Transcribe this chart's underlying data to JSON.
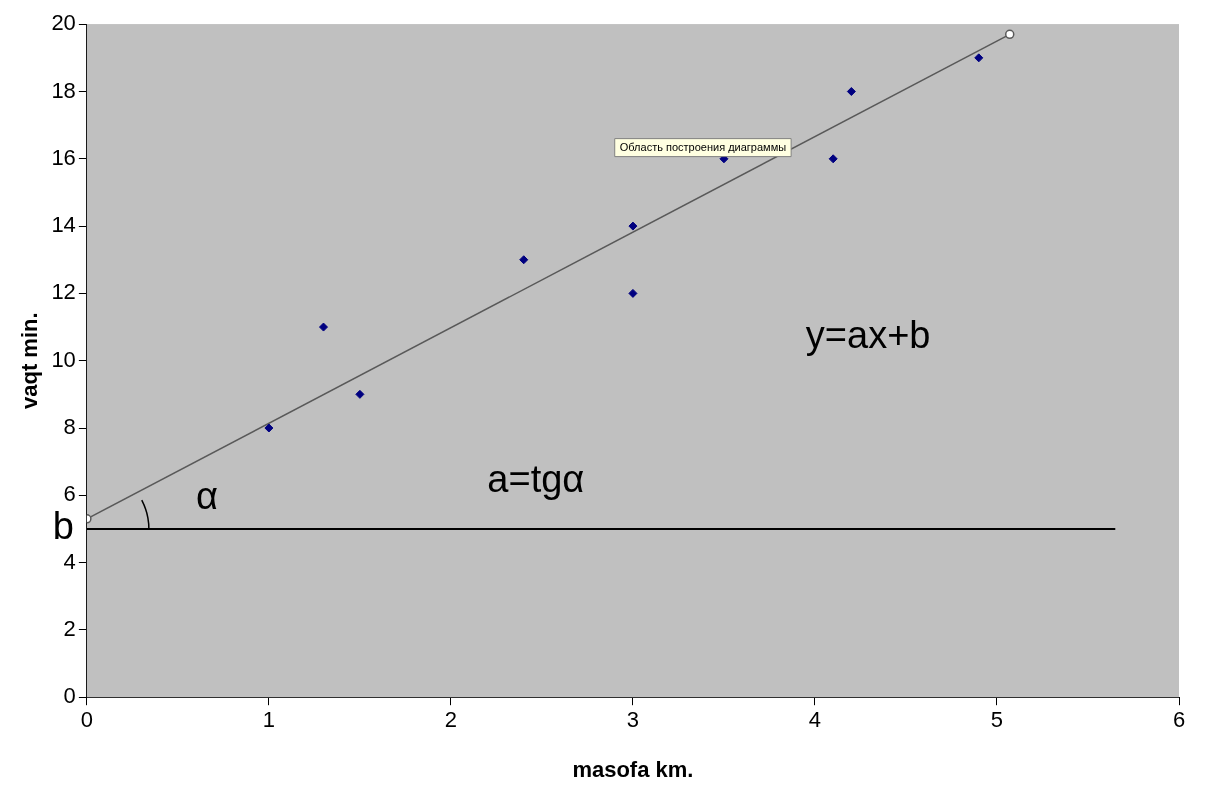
{
  "chart_data": {
    "type": "scatter",
    "xlabel": "masofa km.",
    "ylabel": "vaqt min.",
    "xlim": [
      0,
      6
    ],
    "xticks": [
      0,
      1,
      2,
      3,
      4,
      5,
      6
    ],
    "ylim": [
      0,
      20
    ],
    "yticks": [
      0,
      2,
      4,
      6,
      8,
      10,
      12,
      14,
      16,
      18,
      20
    ],
    "grid": false,
    "legend": false,
    "marker": "diamond",
    "series": [
      {
        "type": "scatter",
        "color": "#000080",
        "x": [
          1,
          1.3,
          1.5,
          2.4,
          3,
          3,
          3.5,
          4.1,
          4.2,
          4.9
        ],
        "values": [
          8,
          11,
          9,
          13,
          14,
          12,
          16,
          16,
          18,
          19
        ]
      },
      {
        "type": "line",
        "color": "#595959",
        "marker": "circle",
        "x": [
          0,
          5.07
        ],
        "values": [
          5.3,
          19.7
        ]
      },
      {
        "type": "line",
        "color": "#000000",
        "marker": "none",
        "x": [
          0,
          5.65
        ],
        "values": [
          5,
          5
        ]
      }
    ],
    "annotations": [
      {
        "text": "b",
        "x": 0,
        "y": 5
      },
      "α",
      "a=tgα",
      "y=ax+b",
      "Область построения диаграммы"
    ]
  }
}
